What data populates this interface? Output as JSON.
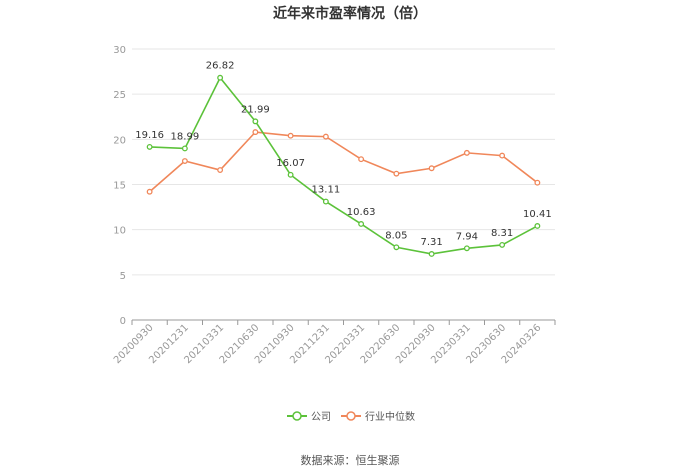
{
  "chart_data": {
    "type": "line",
    "title": "近年来市盈率情况（倍）",
    "categories": [
      "20200930",
      "20201231",
      "20210331",
      "20210630",
      "20210930",
      "20211231",
      "20220331",
      "20220630",
      "20220930",
      "20230331",
      "20230630",
      "20240326"
    ],
    "ylim": [
      0,
      30
    ],
    "yticks": [
      0,
      5,
      10,
      15,
      20,
      25,
      30
    ],
    "grid": true,
    "legend_position": "bottom-center",
    "series": [
      {
        "name": "公司",
        "color": "#5cc23a",
        "values": [
          19.16,
          18.99,
          26.82,
          21.99,
          16.07,
          13.11,
          10.63,
          8.05,
          7.31,
          7.94,
          8.31,
          10.41
        ],
        "labels": [
          "19.16",
          "18.99",
          "26.82",
          "21.99",
          "16.07",
          "13.11",
          "10.63",
          "8.05",
          "7.31",
          "7.94",
          "8.31",
          "10.41"
        ]
      },
      {
        "name": "行业中位数",
        "color": "#f0875a",
        "values": [
          14.2,
          17.6,
          16.6,
          20.8,
          20.4,
          20.3,
          17.8,
          16.2,
          16.8,
          18.5,
          18.2,
          15.2
        ]
      }
    ]
  },
  "footer": {
    "source": "数据来源：恒生聚源"
  }
}
